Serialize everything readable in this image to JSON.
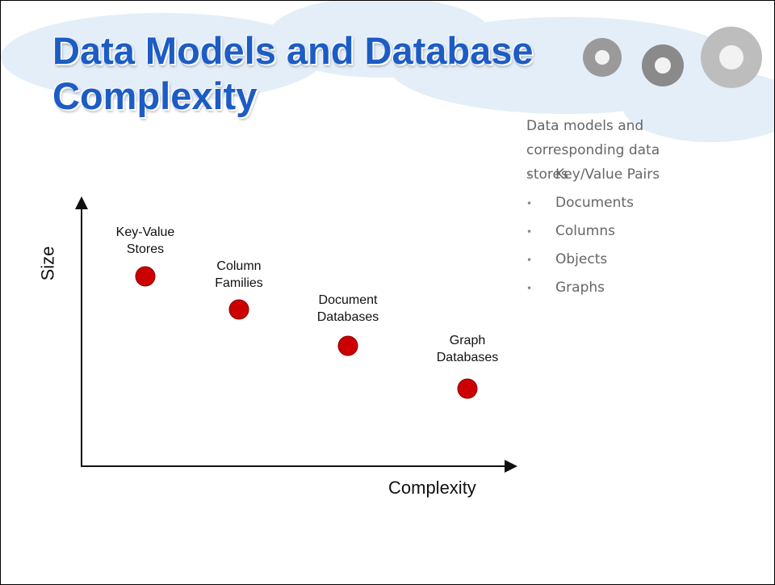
{
  "header": {
    "title": "Data Models and Database Complexity"
  },
  "diagram": {
    "y_axis_label": "Size",
    "x_axis_label": "Complexity",
    "nodes": [
      {
        "label": "Key-Value Stores"
      },
      {
        "label": "Column Families"
      },
      {
        "label": "Document Databases"
      },
      {
        "label": "Graph Databases"
      }
    ]
  },
  "sidebar": {
    "intro": "Data models and corresponding data stores",
    "bullets": [
      "Key/Value Pairs",
      "Documents",
      "Columns",
      "Objects",
      "Graphs"
    ]
  }
}
